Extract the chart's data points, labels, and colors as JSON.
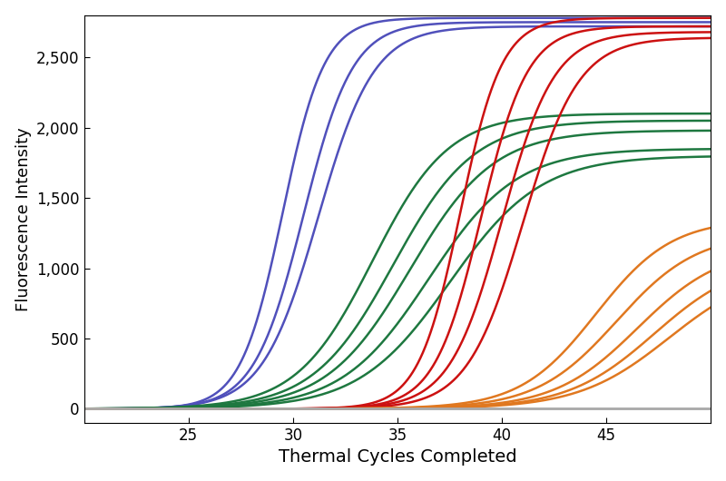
{
  "xlabel": "Thermal Cycles Completed",
  "ylabel": "Fluorescence Intensity",
  "xlim": [
    20,
    50
  ],
  "ylim": [
    -100,
    2800
  ],
  "xticks": [
    25,
    30,
    35,
    40,
    45
  ],
  "yticks": [
    0,
    500,
    1000,
    1500,
    2000,
    2500
  ],
  "background_color": "#ffffff",
  "xlabel_fontsize": 14,
  "ylabel_fontsize": 13,
  "tick_fontsize": 12,
  "line_width": 1.8,
  "groups": [
    {
      "color": "#5050bb",
      "curves": [
        {
          "midpoint": 29.5,
          "slope": 1.0,
          "max": 2780
        },
        {
          "midpoint": 30.5,
          "slope": 0.85,
          "max": 2750
        },
        {
          "midpoint": 31.2,
          "slope": 0.75,
          "max": 2720
        }
      ]
    },
    {
      "color": "#1e7840",
      "curves": [
        {
          "midpoint": 33.8,
          "slope": 0.55,
          "max": 2100
        },
        {
          "midpoint": 34.8,
          "slope": 0.52,
          "max": 2050
        },
        {
          "midpoint": 35.6,
          "slope": 0.5,
          "max": 1980
        },
        {
          "midpoint": 36.5,
          "slope": 0.48,
          "max": 1850
        },
        {
          "midpoint": 37.5,
          "slope": 0.46,
          "max": 1800
        }
      ]
    },
    {
      "color": "#cc1111",
      "curves": [
        {
          "midpoint": 38.0,
          "slope": 1.0,
          "max": 2780
        },
        {
          "midpoint": 39.0,
          "slope": 0.9,
          "max": 2720
        },
        {
          "midpoint": 40.0,
          "slope": 0.8,
          "max": 2680
        },
        {
          "midpoint": 41.0,
          "slope": 0.75,
          "max": 2640
        }
      ]
    },
    {
      "color": "#e07820",
      "curves": [
        {
          "midpoint": 44.5,
          "slope": 0.55,
          "max": 1350
        },
        {
          "midpoint": 45.5,
          "slope": 0.52,
          "max": 1250
        },
        {
          "midpoint": 46.5,
          "slope": 0.5,
          "max": 1150
        },
        {
          "midpoint": 47.3,
          "slope": 0.48,
          "max": 1070
        },
        {
          "midpoint": 48.0,
          "slope": 0.46,
          "max": 1010
        }
      ]
    },
    {
      "color": "#aaaaaa",
      "curves": [
        {
          "midpoint": 999,
          "slope": 0.5,
          "max": 15
        },
        {
          "midpoint": 999,
          "slope": 0.5,
          "max": 8
        }
      ]
    }
  ]
}
